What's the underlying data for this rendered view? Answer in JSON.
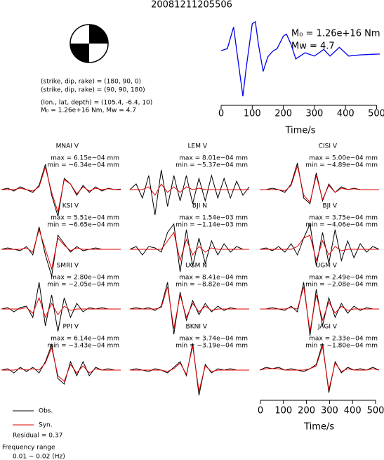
{
  "title": "20081211205506",
  "source": {
    "lines": [
      "(strike, dip, rake) = (180, 90, 0)",
      "(strike, dip, rake) = (90, 90, 180)",
      "(lon., lat, depth) = (105.4, -6.4, 10)",
      "M₀ = 1.26e+16 Nm, Mw = 4.7"
    ]
  },
  "legend": [
    {
      "name": "Obs.",
      "color": "#000000"
    },
    {
      "name": "Syn.",
      "color": "#e00000"
    }
  ],
  "residual": "Residual = 0.37",
  "frequency_title": "Frequency range",
  "frequency_range": "0.01 − 0.02 (Hz)",
  "waveform_axis": {
    "xlim": [
      0,
      510
    ],
    "xticks": [
      0,
      100,
      200,
      300,
      400,
      500
    ],
    "xlabel": "Time/s"
  },
  "chart_data": [
    {
      "type": "line",
      "color": "#0000ee",
      "xlabel": "Time/s",
      "annotations": [
        "M₀ = 1.26e+16 Nm",
        "Mw = 4.7"
      ],
      "xlim": [
        0,
        510
      ],
      "xticks": [
        0,
        100,
        200,
        300,
        400,
        500
      ],
      "ylim": [
        -1.1,
        0.9
      ],
      "x": [
        0,
        20,
        40,
        60,
        70,
        80,
        100,
        110,
        120,
        135,
        150,
        165,
        180,
        200,
        210,
        225,
        240,
        270,
        300,
        330,
        350,
        380,
        410,
        450,
        480,
        510
      ],
      "values": [
        0.05,
        0.1,
        0.62,
        -0.5,
        -1.05,
        -0.4,
        0.7,
        0.75,
        0.2,
        -0.45,
        -0.1,
        0.03,
        0.1,
        0.4,
        0.45,
        0.2,
        -0.15,
        0,
        -0.08,
        0.08,
        -0.08,
        0.13,
        -0.08,
        -0.05,
        -0.04,
        -0.03
      ]
    },
    {
      "type": "waveform",
      "title": "MNAI V",
      "max_label": "max = 6.15e−04 mm",
      "min_label": "min = −6.34e−04 mm",
      "obs": [
        0,
        0.05,
        -0.05,
        0.1,
        0,
        -0.1,
        0.15,
        0.9,
        -0.2,
        -0.95,
        0.4,
        0.2,
        -0.2,
        0.15,
        -0.1,
        0.1,
        -0.05,
        0.05,
        0,
        0.02
      ],
      "syn": [
        0,
        0,
        0,
        0.05,
        0,
        -0.05,
        0.1,
        0.8,
        -0.1,
        -0.8,
        0.35,
        0.2,
        -0.15,
        0.1,
        -0.05,
        0.05,
        0,
        0.03,
        0,
        0
      ]
    },
    {
      "type": "waveform",
      "title": "LEM V",
      "max_label": "max = 8.01e−04 mm",
      "min_label": "min = −5.37e−04 mm",
      "obs": [
        0,
        0.2,
        -0.3,
        0.5,
        -0.9,
        0.7,
        -0.6,
        0.5,
        -0.4,
        0.5,
        -0.5,
        0.4,
        -0.4,
        0.5,
        -0.3,
        0.4,
        -0.3,
        0.3,
        -0.2,
        0.1
      ],
      "syn": [
        0,
        0,
        0,
        0.1,
        -0.2,
        0.2,
        -0.1,
        0.1,
        -0.1,
        0.1,
        0,
        0.05,
        0,
        0,
        0,
        0,
        0,
        0,
        0,
        0
      ]
    },
    {
      "type": "waveform",
      "title": "CISI V",
      "max_label": "max = 5.00e−04 mm",
      "min_label": "min = −4.89e−04 mm",
      "obs": [
        0,
        0,
        0.05,
        0,
        -0.1,
        0.2,
        0.95,
        -0.3,
        -0.5,
        0.6,
        -0.4,
        0.2,
        -0.1,
        0.1,
        0,
        0.05,
        0,
        0,
        0,
        0
      ],
      "syn": [
        0,
        0,
        0,
        0,
        -0.05,
        0.15,
        0.85,
        -0.2,
        -0.45,
        0.5,
        -0.35,
        0.15,
        -0.1,
        0.05,
        0,
        0.03,
        0,
        0,
        0,
        0
      ]
    },
    {
      "type": "waveform",
      "title": "KSI V",
      "max_label": "max = 5.51e−04 mm",
      "min_label": "min = −6.65e−04 mm",
      "obs": [
        0,
        0.05,
        0,
        -0.05,
        0.1,
        -0.2,
        0.8,
        -0.2,
        -0.95,
        0.5,
        0.2,
        -0.1,
        0.1,
        -0.05,
        0,
        0.05,
        0,
        0,
        0,
        0
      ],
      "syn": [
        0,
        0,
        0,
        0,
        0.05,
        -0.1,
        0.7,
        0,
        -0.7,
        0.4,
        0.15,
        -0.05,
        0.05,
        0,
        0,
        0,
        0,
        0,
        0,
        0
      ]
    },
    {
      "type": "waveform",
      "title": "BJI N",
      "max_label": "max = 1.54e−03 mm",
      "min_label": "min = −1.14e−03 mm",
      "obs": [
        0,
        0.1,
        -0.2,
        0.1,
        0.05,
        -0.1,
        0.6,
        0.9,
        -0.8,
        0.7,
        -0.6,
        0.4,
        -0.5,
        0.3,
        -0.2,
        0.2,
        -0.1,
        0.1,
        0,
        0
      ],
      "syn": [
        0,
        0,
        0,
        0,
        0,
        0,
        0.3,
        0.6,
        -0.4,
        0.35,
        -0.2,
        0.1,
        -0.1,
        0.05,
        0,
        0,
        0,
        0,
        0,
        0
      ]
    },
    {
      "type": "waveform",
      "title": "BJI V",
      "max_label": "max = 3.75e−04 mm",
      "min_label": "min = −4.06e−04 mm",
      "obs": [
        0,
        0.05,
        -0.05,
        0.1,
        -0.1,
        0.2,
        -0.2,
        0.4,
        0.9,
        -0.6,
        0.6,
        -0.5,
        0.7,
        -0.4,
        0.3,
        -0.3,
        0.2,
        -0.1,
        0.1,
        0
      ],
      "syn": [
        0,
        0,
        0,
        0,
        0,
        0,
        0.1,
        0.4,
        0.5,
        -0.4,
        0.3,
        -0.2,
        0.1,
        -0.05,
        0,
        0,
        0,
        0,
        0,
        0
      ]
    },
    {
      "type": "waveform",
      "title": "SMRI V",
      "max_label": "max = 2.80e−04 mm",
      "min_label": "min = −2.05e−04 mm",
      "obs": [
        0,
        0.05,
        -0.1,
        0.05,
        0.1,
        -0.3,
        0.95,
        -0.6,
        0.5,
        -0.8,
        0.4,
        -0.3,
        0.2,
        -0.1,
        0.05,
        0,
        0.05,
        0,
        0,
        0
      ],
      "syn": [
        0,
        0,
        0,
        0,
        0.05,
        -0.15,
        0.4,
        -0.3,
        0.2,
        -0.2,
        0.1,
        -0.05,
        0,
        0,
        0,
        0,
        0,
        0,
        0,
        0
      ]
    },
    {
      "type": "waveform",
      "title": "UGM N",
      "max_label": "max = 8.41e−04 mm",
      "min_label": "min = −8.82e−04 mm",
      "obs": [
        0,
        0.05,
        0,
        0.05,
        -0.05,
        0.1,
        0.95,
        -0.9,
        0.6,
        -0.4,
        0.3,
        -0.2,
        0.2,
        -0.1,
        0.1,
        -0.05,
        0.05,
        0,
        0,
        0
      ],
      "syn": [
        0,
        0,
        0,
        0,
        0,
        0.05,
        0.8,
        -0.7,
        0.5,
        -0.3,
        0.2,
        -0.1,
        0.1,
        -0.05,
        0,
        0,
        0,
        0,
        0,
        0
      ]
    },
    {
      "type": "waveform",
      "title": "UGM V",
      "max_label": "max = 2.49e−04 mm",
      "min_label": "min = −2.08e−04 mm",
      "obs": [
        0,
        0,
        0.05,
        0,
        -0.05,
        0.1,
        -0.1,
        0.95,
        -0.95,
        0.7,
        -0.6,
        0.4,
        -0.3,
        0.2,
        -0.15,
        0.1,
        -0.05,
        0.05,
        0,
        0
      ],
      "syn": [
        0,
        0,
        0,
        0,
        0,
        0.05,
        0,
        0.8,
        -0.8,
        0.5,
        -0.4,
        0.25,
        -0.15,
        0.1,
        -0.05,
        0,
        0,
        0,
        0,
        0
      ]
    },
    {
      "type": "waveform",
      "title": "PPI V",
      "max_label": "max = 6.14e−04 mm",
      "min_label": "min = −3.43e−04 mm",
      "obs": [
        0,
        0.05,
        -0.1,
        0.1,
        -0.05,
        0.1,
        -0.1,
        0.3,
        0.9,
        -0.3,
        -0.5,
        0.3,
        -0.2,
        0.3,
        -0.2,
        0.1,
        0,
        0.05,
        0,
        0
      ],
      "syn": [
        0,
        0,
        0,
        0.05,
        0,
        0.05,
        0,
        0.25,
        0.8,
        -0.2,
        -0.4,
        0.2,
        -0.1,
        0.15,
        -0.1,
        0.05,
        0,
        0,
        0,
        0
      ]
    },
    {
      "type": "waveform",
      "title": "BKNI V",
      "max_label": "max = 3.74e−04 mm",
      "min_label": "min = −3.19e−04 mm",
      "obs": [
        0,
        0.05,
        0,
        -0.05,
        0.05,
        0,
        -0.1,
        0.1,
        0.3,
        -0.2,
        0.95,
        -0.9,
        0.2,
        -0.1,
        0.05,
        0,
        0.05,
        0,
        0,
        0
      ],
      "syn": [
        0,
        0,
        0,
        0,
        0,
        0,
        -0.05,
        0.05,
        0.25,
        -0.15,
        0.85,
        -0.75,
        0.15,
        -0.05,
        0,
        0,
        0,
        0,
        0,
        0
      ]
    },
    {
      "type": "waveform",
      "title": "JAGI V",
      "max_label": "max = 2.33e−04 mm",
      "min_label": "min = −1.80e−04 mm",
      "obs": [
        0,
        0.1,
        0.05,
        0.1,
        0,
        0.05,
        0,
        -0.05,
        0.05,
        0.2,
        0.95,
        -0.8,
        0.3,
        -0.1,
        0.1,
        0,
        0.05,
        0,
        0.1,
        0
      ],
      "syn": [
        0,
        0.05,
        0.05,
        0.05,
        0,
        0,
        0,
        0,
        0.05,
        0.15,
        0.85,
        -0.7,
        0.25,
        -0.05,
        0.05,
        0,
        0,
        0,
        0.05,
        0
      ]
    }
  ]
}
